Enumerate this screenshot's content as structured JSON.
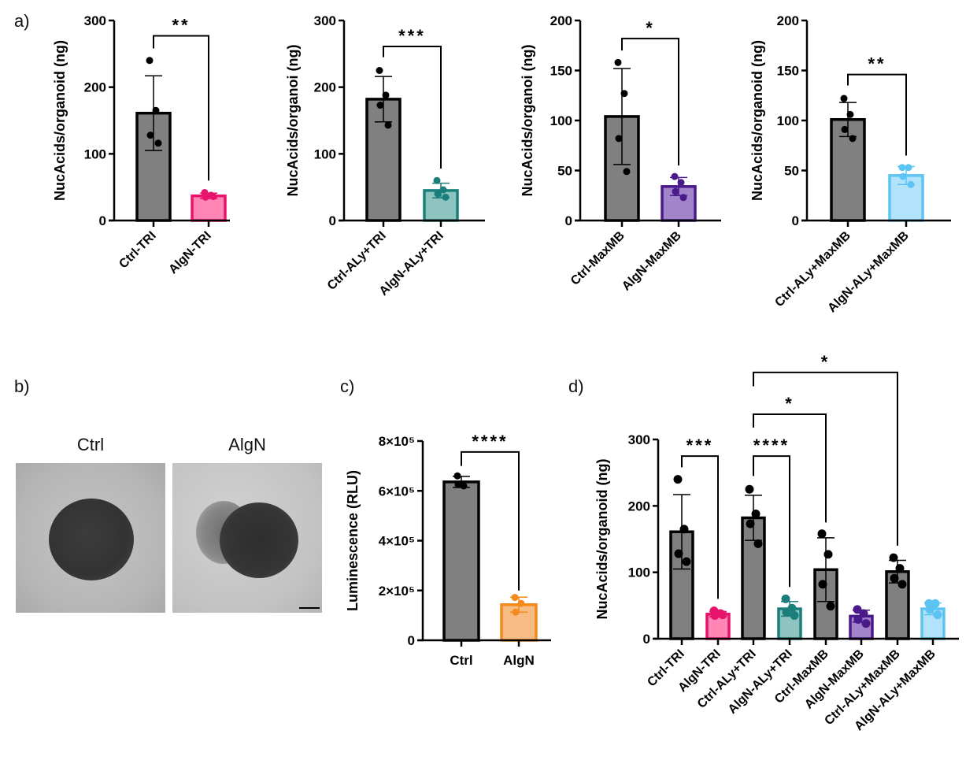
{
  "panels": {
    "a": "a)",
    "b": "b)",
    "c": "c)",
    "d": "d)",
    "b_images": [
      "Ctrl",
      "AlgN"
    ]
  },
  "colors": {
    "gray_fill": "#808080",
    "black": "#000000",
    "pink_fill": "#ff85b5",
    "pink_stroke": "#e8146c",
    "teal_fill": "#8ec3c0",
    "teal_stroke": "#1a7f7a",
    "purple_fill": "#a184c9",
    "purple_stroke": "#4b1a8a",
    "blue_fill": "#b3e3fb",
    "blue_stroke": "#5cc4f2",
    "orange_fill": "#f7bb84",
    "orange_stroke": "#f28a1e"
  },
  "chart_data": [
    {
      "type": "bar",
      "panel": "a",
      "ylabel": "NucAcids/organoid (ng)",
      "ylim": [
        0,
        300
      ],
      "yticks": [
        0,
        100,
        200,
        300
      ],
      "ytick_labels": [
        "0",
        "100",
        "200",
        "300"
      ],
      "categories": [
        "Ctrl-TRI",
        "AlgN-TRI"
      ],
      "means": [
        161,
        37
      ],
      "sd": [
        56,
        4
      ],
      "points": [
        [
          240,
          165,
          128,
          116
        ],
        [
          42,
          38,
          35,
          36
        ]
      ],
      "fill": [
        "#808080",
        "#ff85b5"
      ],
      "stroke": [
        "#000000",
        "#e8146c"
      ],
      "significance": [
        {
          "groups": [
            0,
            1
          ],
          "label": "**",
          "y": 277,
          "left_end": 258,
          "right_end": 60
        }
      ]
    },
    {
      "type": "bar",
      "panel": "a",
      "ylabel": "NucAcids/organoi (ng)",
      "ylim": [
        0,
        300
      ],
      "yticks": [
        0,
        100,
        200,
        300
      ],
      "ytick_labels": [
        "0",
        "100",
        "200",
        "300"
      ],
      "categories": [
        "Ctrl-ALy+TRI",
        "AlgN-ALy+TRI"
      ],
      "means": [
        182,
        45
      ],
      "sd": [
        34,
        11
      ],
      "points": [
        [
          225,
          188,
          173,
          143
        ],
        [
          60,
          46,
          40,
          35
        ]
      ],
      "fill": [
        "#808080",
        "#8ec3c0"
      ],
      "stroke": [
        "#000000",
        "#1a7f7a"
      ],
      "significance": [
        {
          "groups": [
            0,
            1
          ],
          "label": "***",
          "y": 261,
          "left_end": 245,
          "right_end": 78
        }
      ]
    },
    {
      "type": "bar",
      "panel": "a",
      "ylabel": "NucAcids/organoi (ng)",
      "ylim": [
        0,
        200
      ],
      "yticks": [
        0,
        50,
        100,
        150,
        200
      ],
      "ytick_labels": [
        "0",
        "50",
        "100",
        "150",
        "200"
      ],
      "categories": [
        "Ctrl-MaxMB",
        "AlgN-MaxMB"
      ],
      "means": [
        104,
        34
      ],
      "sd": [
        48,
        9
      ],
      "points": [
        [
          158,
          127,
          82,
          49
        ],
        [
          44,
          38,
          29,
          23
        ]
      ],
      "fill": [
        "#808080",
        "#a184c9"
      ],
      "stroke": [
        "#000000",
        "#4b1a8a"
      ],
      "significance": [
        {
          "groups": [
            0,
            1
          ],
          "label": "*",
          "y": 182,
          "left_end": 170,
          "right_end": 55
        }
      ]
    },
    {
      "type": "bar",
      "panel": "a",
      "ylabel": "NucAcids/organoid (ng)",
      "ylim": [
        0,
        200
      ],
      "yticks": [
        0,
        50,
        100,
        150,
        200
      ],
      "ytick_labels": [
        "0",
        "50",
        "100",
        "150",
        "200"
      ],
      "categories": [
        "Ctrl-ALy+MaxMB",
        "AlgN-ALy+MaxMB"
      ],
      "means": [
        101,
        45
      ],
      "sd": [
        17,
        9
      ],
      "points": [
        [
          122,
          106,
          91,
          82
        ],
        [
          53,
          53,
          44,
          36
        ]
      ],
      "fill": [
        "#808080",
        "#b3e3fb"
      ],
      "stroke": [
        "#000000",
        "#5cc4f2"
      ],
      "significance": [
        {
          "groups": [
            0,
            1
          ],
          "label": "**",
          "y": 146,
          "left_end": 135,
          "right_end": 65
        }
      ]
    },
    {
      "type": "bar",
      "panel": "c",
      "ylabel": "Luminescence (RLU)",
      "ylim": [
        0,
        800000
      ],
      "yticks": [
        0,
        200000,
        400000,
        600000,
        800000
      ],
      "ytick_labels": [
        "0",
        "2×10⁵",
        "4×10⁵",
        "6×10⁵",
        "8×10⁵"
      ],
      "categories": [
        "Ctrl",
        "AlgN"
      ],
      "means": [
        636000,
        143000
      ],
      "sd": [
        22000,
        30000
      ],
      "points": [
        [
          660000,
          620000,
          625000
        ],
        [
          172000,
          148000,
          113000
        ]
      ],
      "fill": [
        "#808080",
        "#f7bb84"
      ],
      "stroke": [
        "#000000",
        "#f28a1e"
      ],
      "significance": [
        {
          "groups": [
            0,
            1
          ],
          "label": "****",
          "y": 756000,
          "left_end": 700000,
          "right_end": 200000
        }
      ]
    },
    {
      "type": "bar",
      "panel": "d",
      "ylabel": "NucAcids/organoid (ng)",
      "ylim": [
        0,
        300
      ],
      "yticks": [
        0,
        100,
        200,
        300
      ],
      "ytick_labels": [
        "0",
        "100",
        "200",
        "300"
      ],
      "categories": [
        "Ctrl-TRI",
        "AlgN-TRI",
        "Ctrl-ALy+TRI",
        "AlgN-ALy+TRI",
        "Ctrl-MaxMB",
        "AlgN-MaxMB",
        "Ctrl-ALy+MaxMB",
        "AlgN-ALy+MaxMB"
      ],
      "means": [
        161,
        37,
        182,
        45,
        104,
        34,
        101,
        45
      ],
      "sd": [
        56,
        4,
        34,
        11,
        48,
        9,
        17,
        9
      ],
      "points": [
        [
          240,
          165,
          128,
          116
        ],
        [
          42,
          38,
          35,
          36
        ],
        [
          225,
          188,
          173,
          143
        ],
        [
          60,
          46,
          40,
          35
        ],
        [
          158,
          127,
          82,
          49
        ],
        [
          44,
          38,
          29,
          23
        ],
        [
          122,
          106,
          91,
          82
        ],
        [
          53,
          53,
          44,
          36
        ]
      ],
      "fill": [
        "#808080",
        "#ff85b5",
        "#808080",
        "#8ec3c0",
        "#808080",
        "#a184c9",
        "#808080",
        "#b3e3fb"
      ],
      "stroke": [
        "#000000",
        "#e8146c",
        "#000000",
        "#1a7f7a",
        "#000000",
        "#4b1a8a",
        "#000000",
        "#5cc4f2"
      ],
      "significance": [
        {
          "groups": [
            0,
            1
          ],
          "label": "***",
          "y": 275,
          "left_end": 258,
          "right_end": 60
        },
        {
          "groups": [
            2,
            3
          ],
          "label": "****",
          "y": 275,
          "left_end": 245,
          "right_end": 78
        },
        {
          "groups": [
            2,
            4
          ],
          "label": "*",
          "y": 338,
          "left_end": 318,
          "right_end": 175
        },
        {
          "groups": [
            2,
            6
          ],
          "label": "*",
          "y": 401,
          "left_end": 380,
          "right_end": 140
        }
      ]
    }
  ]
}
